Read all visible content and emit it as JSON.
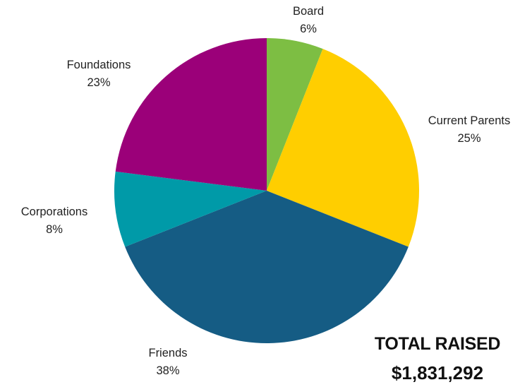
{
  "chart_data": {
    "type": "pie",
    "title": "",
    "slices": [
      {
        "name": "Board",
        "value": 6,
        "label": "6%",
        "color": "#7DBE43"
      },
      {
        "name": "Current Parents",
        "value": 25,
        "label": "25%",
        "color": "#FFCE00"
      },
      {
        "name": "Friends",
        "value": 38,
        "label": "38%",
        "color": "#155C84"
      },
      {
        "name": "Corporations",
        "value": 8,
        "label": "8%",
        "color": "#009AA8"
      },
      {
        "name": "Foundations",
        "value": 23,
        "label": "23%",
        "color": "#9B0079"
      }
    ],
    "start": "top",
    "direction": "clockwise"
  },
  "summary": {
    "total_label": "TOTAL RAISED",
    "total_value": "$1,831,292"
  }
}
